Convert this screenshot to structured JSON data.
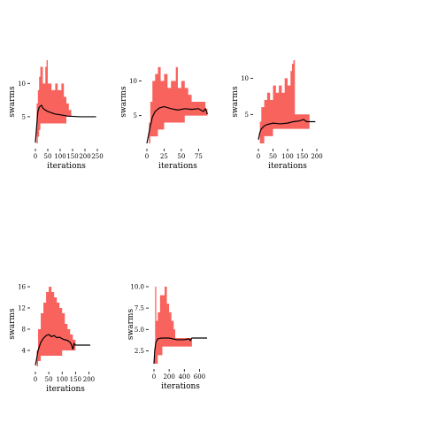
{
  "colors": {
    "band": "#f8635e",
    "mean": "#000000",
    "axis": "#000000"
  },
  "chart_data": [
    {
      "type": "line",
      "xlabel": "iterations",
      "ylabel": "swarms",
      "xlim": [
        0,
        250
      ],
      "ylim": [
        1,
        13.5
      ],
      "xticks": [
        0,
        50,
        100,
        150,
        200,
        250
      ],
      "yticks": [
        5,
        10
      ],
      "mean": [
        [
          0,
          1.1
        ],
        [
          5,
          3.5
        ],
        [
          10,
          5.8
        ],
        [
          15,
          6.4
        ],
        [
          20,
          6.6
        ],
        [
          25,
          6.7
        ],
        [
          30,
          6.3
        ],
        [
          40,
          6.0
        ],
        [
          50,
          5.8
        ],
        [
          65,
          5.6
        ],
        [
          80,
          5.4
        ],
        [
          100,
          5.3
        ],
        [
          130,
          5.1
        ],
        [
          180,
          5.0
        ],
        [
          245,
          5.0
        ]
      ],
      "band": [
        [
          0,
          1,
          1
        ],
        [
          5,
          1,
          7
        ],
        [
          10,
          2,
          9
        ],
        [
          15,
          3,
          11
        ],
        [
          20,
          4,
          12.5
        ],
        [
          30,
          4,
          10
        ],
        [
          40,
          4,
          12.5
        ],
        [
          45,
          4,
          13.5
        ],
        [
          50,
          4,
          10
        ],
        [
          65,
          4,
          9
        ],
        [
          80,
          4,
          10
        ],
        [
          90,
          4,
          9
        ],
        [
          105,
          4,
          10
        ],
        [
          115,
          4,
          8
        ],
        [
          125,
          5,
          7
        ],
        [
          135,
          5,
          6
        ],
        [
          145,
          5,
          5
        ],
        [
          245,
          5,
          5
        ]
      ]
    },
    {
      "type": "line",
      "xlabel": "iterations",
      "ylabel": "swarms",
      "xlim": [
        0,
        90
      ],
      "ylim": [
        1,
        13
      ],
      "xticks": [
        0,
        25,
        50,
        75
      ],
      "yticks": [
        5,
        10
      ],
      "mean": [
        [
          0,
          1
        ],
        [
          3,
          2.5
        ],
        [
          5,
          3.5
        ],
        [
          8,
          4.8
        ],
        [
          12,
          5.6
        ],
        [
          18,
          6.1
        ],
        [
          25,
          6.3
        ],
        [
          35,
          6.0
        ],
        [
          45,
          5.8
        ],
        [
          55,
          6.0
        ],
        [
          65,
          5.9
        ],
        [
          75,
          6.0
        ],
        [
          82,
          5.6
        ],
        [
          85,
          6.0
        ],
        [
          88,
          5.2
        ]
      ],
      "band": [
        [
          0,
          1,
          1
        ],
        [
          3,
          1,
          4
        ],
        [
          5,
          2,
          7
        ],
        [
          8,
          2,
          10
        ],
        [
          12,
          2,
          11
        ],
        [
          16,
          3,
          12
        ],
        [
          20,
          3,
          10
        ],
        [
          25,
          4,
          11
        ],
        [
          30,
          4,
          9
        ],
        [
          35,
          4,
          10
        ],
        [
          42,
          4,
          12
        ],
        [
          45,
          4,
          9
        ],
        [
          50,
          4,
          10
        ],
        [
          55,
          5,
          9
        ],
        [
          60,
          5,
          8
        ],
        [
          65,
          5,
          7
        ],
        [
          82,
          5,
          7
        ],
        [
          85,
          5,
          6
        ],
        [
          88,
          5,
          5
        ]
      ]
    },
    {
      "type": "line",
      "xlabel": "iterations",
      "ylabel": "swarms",
      "xlim": [
        0,
        200
      ],
      "ylim": [
        1,
        12.5
      ],
      "xticks": [
        0,
        50,
        100,
        150,
        200
      ],
      "yticks": [
        5,
        10
      ],
      "mean": [
        [
          0,
          1.5
        ],
        [
          5,
          2.5
        ],
        [
          10,
          3.0
        ],
        [
          20,
          3.4
        ],
        [
          30,
          3.6
        ],
        [
          50,
          3.8
        ],
        [
          75,
          3.7
        ],
        [
          100,
          3.8
        ],
        [
          120,
          4.0
        ],
        [
          140,
          4.1
        ],
        [
          155,
          4.3
        ],
        [
          165,
          4.0
        ],
        [
          175,
          4.0
        ],
        [
          195,
          4.0
        ]
      ],
      "band": [
        [
          0,
          1,
          1
        ],
        [
          5,
          1,
          4
        ],
        [
          10,
          1,
          6
        ],
        [
          20,
          2,
          7
        ],
        [
          30,
          2,
          8
        ],
        [
          40,
          2,
          7
        ],
        [
          50,
          3,
          9
        ],
        [
          60,
          3,
          8
        ],
        [
          70,
          3,
          9
        ],
        [
          80,
          3,
          8
        ],
        [
          90,
          3,
          10
        ],
        [
          100,
          3,
          9
        ],
        [
          110,
          3,
          11
        ],
        [
          115,
          3,
          12
        ],
        [
          120,
          3,
          12.5
        ],
        [
          125,
          3,
          5
        ],
        [
          165,
          3,
          5
        ],
        [
          175,
          4,
          4
        ],
        [
          195,
          4,
          4
        ]
      ]
    },
    {
      "type": "line",
      "xlabel": "iterations",
      "ylabel": "swarms",
      "xlim": [
        0,
        225
      ],
      "ylim": [
        1,
        17
      ],
      "xticks": [
        0,
        50,
        100,
        150,
        200
      ],
      "yticks": [
        4,
        8,
        12,
        16
      ],
      "mean": [
        [
          0,
          1.2
        ],
        [
          5,
          2.5
        ],
        [
          10,
          4.0
        ],
        [
          20,
          5.5
        ],
        [
          30,
          6.3
        ],
        [
          40,
          6.8
        ],
        [
          50,
          7.0
        ],
        [
          60,
          6.6
        ],
        [
          70,
          6.8
        ],
        [
          80,
          6.4
        ],
        [
          90,
          6.5
        ],
        [
          100,
          6.2
        ],
        [
          110,
          6.0
        ],
        [
          120,
          5.9
        ],
        [
          130,
          5.5
        ],
        [
          135,
          5.1
        ],
        [
          140,
          4.2
        ],
        [
          145,
          5.3
        ],
        [
          150,
          5.0
        ],
        [
          205,
          5.0
        ]
      ],
      "band": [
        [
          0,
          1,
          1
        ],
        [
          5,
          1,
          4
        ],
        [
          10,
          2,
          8
        ],
        [
          20,
          3,
          11
        ],
        [
          30,
          3,
          13
        ],
        [
          40,
          3,
          15
        ],
        [
          50,
          3,
          16
        ],
        [
          60,
          3,
          15
        ],
        [
          70,
          3,
          14
        ],
        [
          80,
          3,
          13
        ],
        [
          90,
          3,
          12
        ],
        [
          100,
          4,
          11
        ],
        [
          110,
          4,
          9
        ],
        [
          120,
          4,
          8
        ],
        [
          130,
          4,
          7
        ],
        [
          140,
          4,
          6
        ],
        [
          150,
          5,
          5
        ],
        [
          205,
          5,
          5
        ]
      ]
    },
    {
      "type": "line",
      "xlabel": "iterations",
      "ylabel": "swarms",
      "xlim": [
        0,
        700
      ],
      "ylim": [
        1,
        10.2
      ],
      "xticks": [
        0,
        200,
        400,
        600
      ],
      "yticks": [
        2.5,
        5.0,
        7.5,
        10.0
      ],
      "mean": [
        [
          0,
          1.0
        ],
        [
          10,
          2.5
        ],
        [
          25,
          3.5
        ],
        [
          50,
          3.9
        ],
        [
          100,
          4.0
        ],
        [
          200,
          4.0
        ],
        [
          300,
          3.8
        ],
        [
          400,
          3.8
        ],
        [
          460,
          3.9
        ],
        [
          480,
          3.7
        ],
        [
          500,
          4.0
        ],
        [
          700,
          4.0
        ]
      ],
      "band": [
        [
          0,
          1,
          2
        ],
        [
          15,
          1,
          10
        ],
        [
          30,
          1,
          6
        ],
        [
          50,
          2,
          7
        ],
        [
          80,
          2,
          9
        ],
        [
          110,
          3,
          9
        ],
        [
          140,
          3,
          10
        ],
        [
          170,
          3,
          8
        ],
        [
          200,
          3,
          7
        ],
        [
          230,
          3,
          6
        ],
        [
          260,
          3,
          5
        ],
        [
          280,
          3,
          4
        ],
        [
          500,
          4,
          4
        ],
        [
          700,
          4,
          4
        ]
      ]
    }
  ]
}
